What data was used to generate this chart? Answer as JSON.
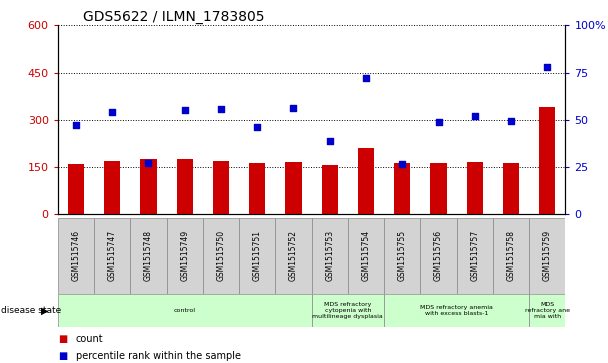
{
  "title": "GDS5622 / ILMN_1783805",
  "samples": [
    "GSM1515746",
    "GSM1515747",
    "GSM1515748",
    "GSM1515749",
    "GSM1515750",
    "GSM1515751",
    "GSM1515752",
    "GSM1515753",
    "GSM1515754",
    "GSM1515755",
    "GSM1515756",
    "GSM1515757",
    "GSM1515758",
    "GSM1515759"
  ],
  "counts": [
    160,
    170,
    175,
    175,
    170,
    162,
    165,
    157,
    210,
    162,
    163,
    165,
    163,
    340
  ],
  "percentile_ranks": [
    285,
    325,
    163,
    330,
    335,
    278,
    338,
    232,
    432,
    158,
    293,
    312,
    297,
    468
  ],
  "bar_color": "#cc0000",
  "dot_color": "#0000cc",
  "ylim_left": [
    0,
    600
  ],
  "ylim_right": [
    0,
    100
  ],
  "yticks_left": [
    0,
    150,
    300,
    450,
    600
  ],
  "yticks_right": [
    0,
    25,
    50,
    75,
    100
  ],
  "disease_groups": [
    {
      "label": "control",
      "start": 0,
      "end": 7,
      "color": "#ccffcc"
    },
    {
      "label": "MDS refractory\ncytopenia with\nmultilineage dysplasia",
      "start": 7,
      "end": 9,
      "color": "#ccffcc"
    },
    {
      "label": "MDS refractory anemia\nwith excess blasts-1",
      "start": 9,
      "end": 13,
      "color": "#ccffcc"
    },
    {
      "label": "MDS\nrefractory ane\nmia with",
      "start": 13,
      "end": 14,
      "color": "#ccffcc"
    }
  ],
  "disease_label": "disease state",
  "legend_count": "count",
  "legend_percentile": "percentile rank within the sample",
  "bg_color": "#ffffff",
  "tick_label_color_left": "#cc0000",
  "tick_label_color_right": "#0000cc",
  "sample_cell_color": "#d3d3d3",
  "border_color": "#888888"
}
